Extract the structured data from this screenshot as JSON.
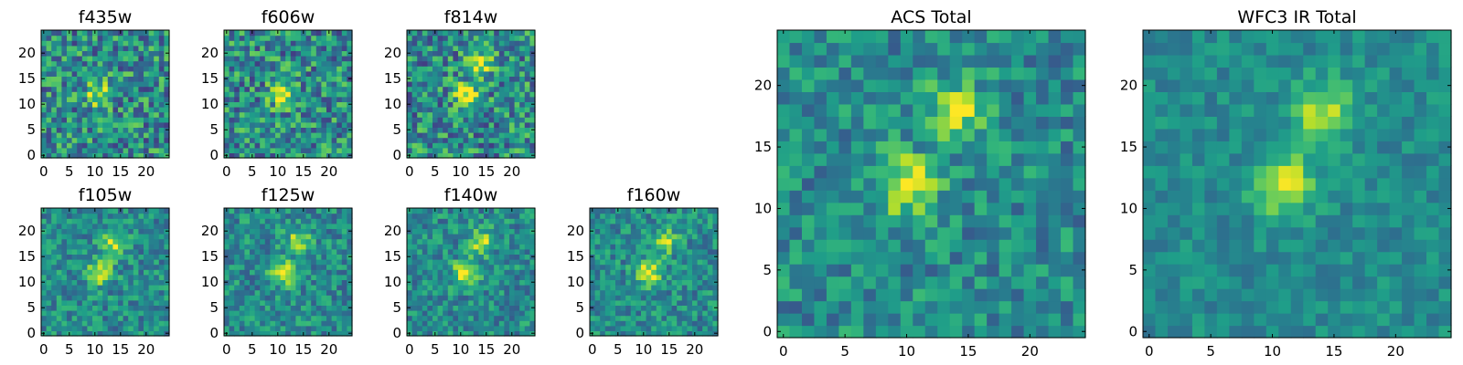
{
  "chart_data": [
    {
      "type": "heatmap",
      "title": "f435w",
      "colormap": "viridis",
      "grid": false,
      "xlim": [
        0,
        24
      ],
      "ylim": [
        0,
        24
      ],
      "xticks": [
        "0",
        "5",
        "10",
        "15",
        "20"
      ],
      "yticks": [
        "0",
        "5",
        "10",
        "15",
        "20"
      ],
      "hot_spots": [
        [
          11,
          12
        ]
      ],
      "noise": "high"
    },
    {
      "type": "heatmap",
      "title": "f606w",
      "colormap": "viridis",
      "grid": false,
      "xlim": [
        0,
        24
      ],
      "ylim": [
        0,
        24
      ],
      "xticks": [
        "0",
        "5",
        "10",
        "15",
        "20"
      ],
      "yticks": [
        "0",
        "5",
        "10",
        "15",
        "20"
      ],
      "hot_spots": [
        [
          11,
          12
        ]
      ],
      "noise": "high"
    },
    {
      "type": "heatmap",
      "title": "f814w",
      "colormap": "viridis",
      "grid": false,
      "xlim": [
        0,
        24
      ],
      "ylim": [
        0,
        24
      ],
      "xticks": [
        "0",
        "5",
        "10",
        "15",
        "20"
      ],
      "yticks": [
        "0",
        "5",
        "10",
        "15",
        "20"
      ],
      "hot_spots": [
        [
          11,
          12
        ],
        [
          14,
          18
        ]
      ],
      "noise": "high"
    },
    {
      "type": "heatmap",
      "title": "f105w",
      "colormap": "viridis",
      "grid": false,
      "xlim": [
        0,
        24
      ],
      "ylim": [
        0,
        24
      ],
      "xticks": [
        "0",
        "5",
        "10",
        "15",
        "20"
      ],
      "yticks": [
        "0",
        "5",
        "10",
        "15",
        "20"
      ],
      "hot_spots": [
        [
          11,
          12
        ],
        [
          14,
          18
        ]
      ],
      "noise": "medium"
    },
    {
      "type": "heatmap",
      "title": "f125w",
      "colormap": "viridis",
      "grid": false,
      "xlim": [
        0,
        24
      ],
      "ylim": [
        0,
        24
      ],
      "xticks": [
        "0",
        "5",
        "10",
        "15",
        "20"
      ],
      "yticks": [
        "0",
        "5",
        "10",
        "15",
        "20"
      ],
      "hot_spots": [
        [
          11,
          12
        ],
        [
          14,
          18
        ]
      ],
      "noise": "medium"
    },
    {
      "type": "heatmap",
      "title": "f140w",
      "colormap": "viridis",
      "grid": false,
      "xlim": [
        0,
        24
      ],
      "ylim": [
        0,
        24
      ],
      "xticks": [
        "0",
        "5",
        "10",
        "15",
        "20"
      ],
      "yticks": [
        "0",
        "5",
        "10",
        "15",
        "20"
      ],
      "hot_spots": [
        [
          11,
          12
        ],
        [
          14,
          18
        ]
      ],
      "noise": "medium"
    },
    {
      "type": "heatmap",
      "title": "f160w",
      "colormap": "viridis",
      "grid": false,
      "xlim": [
        0,
        24
      ],
      "ylim": [
        0,
        24
      ],
      "xticks": [
        "0",
        "5",
        "10",
        "15",
        "20"
      ],
      "yticks": [
        "0",
        "5",
        "10",
        "15",
        "20"
      ],
      "hot_spots": [
        [
          11,
          12
        ],
        [
          14,
          18
        ]
      ],
      "noise": "medium"
    },
    {
      "type": "heatmap",
      "title": "ACS Total",
      "colormap": "viridis",
      "grid": false,
      "xlim": [
        0,
        24
      ],
      "ylim": [
        0,
        24
      ],
      "xticks": [
        "0",
        "5",
        "10",
        "15",
        "20"
      ],
      "yticks": [
        "0",
        "5",
        "10",
        "15",
        "20"
      ],
      "hot_spots": [
        [
          10,
          12
        ],
        [
          14,
          18
        ]
      ],
      "noise": "medium"
    },
    {
      "type": "heatmap",
      "title": "WFC3 IR Total",
      "colormap": "viridis",
      "grid": false,
      "xlim": [
        0,
        24
      ],
      "ylim": [
        0,
        24
      ],
      "xticks": [
        "0",
        "5",
        "10",
        "15",
        "20"
      ],
      "yticks": [
        "0",
        "5",
        "10",
        "15",
        "20"
      ],
      "hot_spots": [
        [
          11,
          12
        ],
        [
          14,
          18
        ]
      ],
      "noise": "low"
    }
  ]
}
